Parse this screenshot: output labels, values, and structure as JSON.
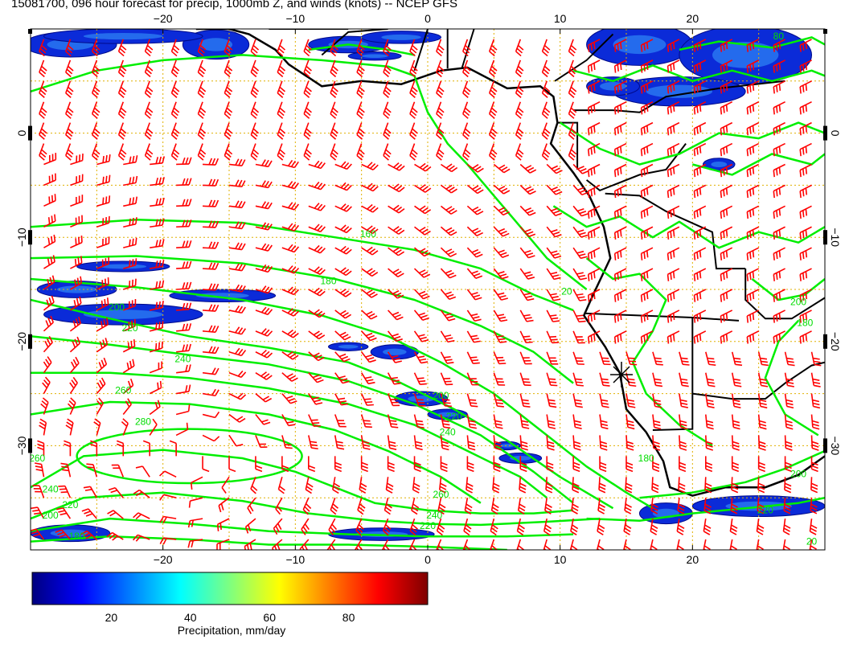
{
  "title": "15081700, 096 hour forecast for precip, 1000mb Z, and winds (knots) -- NCEP GFS",
  "map": {
    "lon_range": [
      -30,
      30
    ],
    "lat_range": [
      -40,
      10
    ],
    "lon_ticks": [
      -20,
      -10,
      0,
      10,
      20
    ],
    "lat_ticks": [
      0,
      -10,
      -20,
      -30
    ],
    "lon_tick_labels": [
      "−20",
      "−10",
      "0",
      "10",
      "20"
    ],
    "lat_tick_labels": [
      "0",
      "−10",
      "−20",
      "−30"
    ],
    "grid": true,
    "colors": {
      "grid": "#e0b000",
      "barb": "#ff0000",
      "contour": "#00ee00",
      "coast": "#000000"
    }
  },
  "contour_labels": [
    {
      "text": "160",
      "lon": -4.5,
      "lat": -10
    },
    {
      "text": "180",
      "lon": -7.5,
      "lat": -14.5
    },
    {
      "text": "200",
      "lon": -23.5,
      "lat": -17
    },
    {
      "text": "220",
      "lon": -22.5,
      "lat": -19
    },
    {
      "text": "240",
      "lon": -18.5,
      "lat": -22
    },
    {
      "text": "260",
      "lon": -23,
      "lat": -25
    },
    {
      "text": "280",
      "lon": -21.5,
      "lat": -28
    },
    {
      "text": "260",
      "lon": -29.5,
      "lat": -31.5
    },
    {
      "text": "240",
      "lon": -28.5,
      "lat": -34.5
    },
    {
      "text": "220",
      "lon": -27,
      "lat": -36
    },
    {
      "text": "200",
      "lon": -28.5,
      "lat": -37
    },
    {
      "text": "180",
      "lon": -26.5,
      "lat": -39
    },
    {
      "text": "200",
      "lon": 1,
      "lat": -25.5
    },
    {
      "text": "220",
      "lon": 2,
      "lat": -27.5
    },
    {
      "text": "240",
      "lon": 1.5,
      "lat": -29
    },
    {
      "text": "260",
      "lon": 1,
      "lat": -35
    },
    {
      "text": "240",
      "lon": 0.5,
      "lat": -37
    },
    {
      "text": "220",
      "lon": 0,
      "lat": -38
    },
    {
      "text": "180",
      "lon": 16.5,
      "lat": -31.5
    },
    {
      "text": "200",
      "lon": 28,
      "lat": -33
    },
    {
      "text": "220",
      "lon": 25.5,
      "lat": -36.5
    },
    {
      "text": "20",
      "lon": 10.5,
      "lat": -15.5
    },
    {
      "text": "80",
      "lon": 26.5,
      "lat": 9
    },
    {
      "text": "180",
      "lon": 28.5,
      "lat": -18.5
    },
    {
      "text": "200",
      "lon": 28,
      "lat": -16.5
    },
    {
      "text": "20",
      "lon": 29,
      "lat": -39.5
    }
  ],
  "colorbar": {
    "label": "Precipitation, mm/day",
    "tick_values": [
      20,
      40,
      60,
      80
    ],
    "tick_labels": [
      "20",
      "40",
      "60",
      "80"
    ],
    "range": [
      0,
      100
    ],
    "colors": [
      "#00007f",
      "#0000ff",
      "#007fff",
      "#00ffff",
      "#7fff7f",
      "#ffff00",
      "#ff7f00",
      "#ff0000",
      "#7f0000"
    ]
  }
}
